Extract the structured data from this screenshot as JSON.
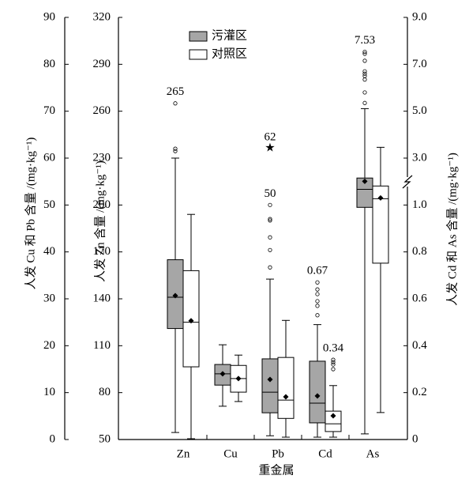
{
  "chart_data": {
    "type": "box",
    "categories": [
      "Zn",
      "Cu",
      "Pb",
      "Cd",
      "As"
    ],
    "category_axes": [
      "y3",
      "y",
      "y",
      "y2",
      "y2"
    ],
    "x_label": "重金属",
    "y_label": "人发 Cu 和 Pb 含量 /(mg·kg⁻¹)",
    "y3_label": "人发 Zn 含量 /(mg·kg⁻¹)",
    "y2_label": "人发 Cd 和 As 含量 /(mg·kg⁻¹)",
    "ylim": [
      0,
      90
    ],
    "yticks": [
      0,
      10,
      20,
      30,
      40,
      50,
      60,
      70,
      80,
      90
    ],
    "y3lim": [
      50,
      320
    ],
    "y3ticks": [
      50,
      80,
      110,
      140,
      170,
      200,
      230,
      260,
      290,
      320
    ],
    "y2lim": [
      0,
      9
    ],
    "y2ticks": [
      0,
      0.2,
      0.4,
      0.6,
      0.8,
      {
        "value": 1,
        "label": "1.0"
      },
      {
        "value": 3,
        "label": "3.0"
      },
      {
        "value": 5,
        "label": "5.0"
      },
      {
        "value": 7,
        "label": "7.0"
      },
      {
        "value": 9,
        "label": "9.0"
      }
    ],
    "series": [
      {
        "name": "污灌区",
        "color": "#a6a6a6",
        "boxes": [
          {
            "whislo": 54.5,
            "q1": 121,
            "med": 141,
            "q3": 165,
            "whishi": 230,
            "mean": 142,
            "fliers": [
              236,
              234.5
            ],
            "annotated": [
              {
                "value": 265,
                "marker": "o"
              }
            ]
          },
          {
            "whislo": 7.1,
            "q1": 11.6,
            "med": 14.0,
            "q3": 16.0,
            "whishi": 20.2,
            "mean": 14.0
          },
          {
            "whislo": 0.8,
            "q1": 5.7,
            "med": 10.1,
            "q3": 17.2,
            "whishi": 34.2,
            "mean": 12.8,
            "fliers": [
              36.7,
              40.4,
              43.1,
              46.7,
              47.0
            ],
            "annotated": [
              {
                "value": 62,
                "marker": "*"
              },
              {
                "value": 50,
                "marker": "o"
              }
            ]
          },
          {
            "whislo": 0.01,
            "q1": 0.071,
            "med": 0.155,
            "q3": 0.334,
            "whishi": 0.49,
            "mean": 0.186,
            "fliers": [
              0.53,
              0.57,
              0.59,
              0.62,
              0.64
            ],
            "annotated": [
              {
                "value": 0.67,
                "marker": "o"
              }
            ]
          },
          {
            "whislo": 0.024,
            "q1": 0.99,
            "med": 1.67,
            "q3": 2.15,
            "whishi": 5.11,
            "mean": 2.01,
            "fliers": [
              5.35,
              5.8,
              6.35,
              6.5,
              6.6,
              6.7,
              7.15,
              7.45
            ],
            "annotated": [
              {
                "value": 7.53,
                "marker": "o"
              }
            ]
          }
        ]
      },
      {
        "name": "对照区",
        "color": "#ffffff",
        "boxes": [
          {
            "whislo": 50.5,
            "q1": 96.5,
            "med": 125,
            "q3": 158,
            "whishi": 194,
            "mean": 126
          },
          {
            "whislo": 8.1,
            "q1": 10.1,
            "med": 13.0,
            "q3": 15.8,
            "whishi": 18.0,
            "mean": 13.0
          },
          {
            "whislo": 0.5,
            "q1": 4.5,
            "med": 8.4,
            "q3": 17.5,
            "whishi": 25.4,
            "mean": 9.1
          },
          {
            "whislo": 0.01,
            "q1": 0.034,
            "med": 0.067,
            "q3": 0.121,
            "whishi": 0.23,
            "mean": 0.101,
            "fliers": [
              0.3,
              0.32,
              0.33
            ],
            "annotated": [
              {
                "value": 0.34,
                "marker": "o"
              }
            ]
          },
          {
            "whislo": 0.115,
            "q1": 0.752,
            "med": 1.27,
            "q3": 1.81,
            "whishi": 3.46,
            "mean": 1.3
          }
        ]
      }
    ]
  }
}
